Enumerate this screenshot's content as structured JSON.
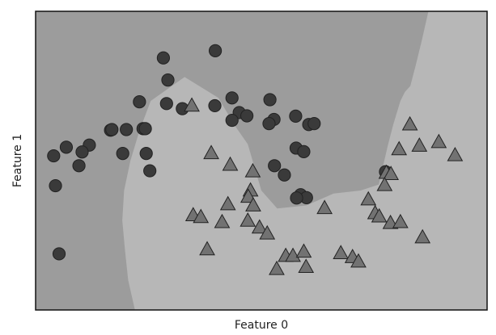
{
  "chart_data": {
    "type": "scatter",
    "title": "",
    "xlabel": "Feature 0",
    "ylabel": "Feature 1",
    "grid": false,
    "legend": "none",
    "xlim": [
      0,
      100
    ],
    "ylim": [
      0,
      100
    ],
    "colors": {
      "region_class0": "#9c9c9c",
      "region_class1": "#b7b7b7",
      "marker_class0": "#3a3a3a",
      "marker_class1": "#727272",
      "marker_edge": "#222222"
    },
    "decision_boundary": {
      "x": [
        22.0,
        20.5,
        19.8,
        19.2,
        19.6,
        21.0,
        23.0,
        25.5,
        33.0,
        40.5,
        44.0,
        47.0,
        50.0,
        53.5,
        60.0,
        66.0,
        72.0,
        76.0,
        78.0,
        79.2,
        80.0,
        80.8,
        81.8,
        83.0,
        84.2,
        85.5,
        87.0
      ],
      "y": [
        0.0,
        10.0,
        20.0,
        30.0,
        40.0,
        50.0,
        60.0,
        70.0,
        78.0,
        71.0,
        62.0,
        55.5,
        40.0,
        34.0,
        35.0,
        39.0,
        40.0,
        42.0,
        55.0,
        62.0,
        66.0,
        70.0,
        73.0,
        75.0,
        82.0,
        90.0,
        100.0
      ]
    },
    "series": [
      {
        "marker": "circle",
        "points": [
          {
            "x": 28.3,
            "y": 84.4
          },
          {
            "x": 29.3,
            "y": 77.0
          },
          {
            "x": 39.8,
            "y": 86.8
          },
          {
            "x": 23.0,
            "y": 69.7
          },
          {
            "x": 29.0,
            "y": 69.1
          },
          {
            "x": 43.5,
            "y": 71.0
          },
          {
            "x": 39.7,
            "y": 68.4
          },
          {
            "x": 45.1,
            "y": 66.1
          },
          {
            "x": 43.5,
            "y": 63.5
          },
          {
            "x": 46.8,
            "y": 65.0
          },
          {
            "x": 51.9,
            "y": 70.4
          },
          {
            "x": 52.8,
            "y": 63.8
          },
          {
            "x": 51.7,
            "y": 62.4
          },
          {
            "x": 57.6,
            "y": 64.9
          },
          {
            "x": 60.5,
            "y": 62.1
          },
          {
            "x": 61.7,
            "y": 62.4
          },
          {
            "x": 32.5,
            "y": 67.4
          },
          {
            "x": 16.6,
            "y": 60.2
          },
          {
            "x": 23.8,
            "y": 60.7
          },
          {
            "x": 24.3,
            "y": 60.7
          },
          {
            "x": 16.9,
            "y": 60.4
          },
          {
            "x": 20.1,
            "y": 60.4
          },
          {
            "x": 11.9,
            "y": 55.2
          },
          {
            "x": 6.8,
            "y": 54.5
          },
          {
            "x": 4.0,
            "y": 51.6
          },
          {
            "x": 10.3,
            "y": 52.9
          },
          {
            "x": 9.6,
            "y": 48.3
          },
          {
            "x": 19.3,
            "y": 52.4
          },
          {
            "x": 24.5,
            "y": 52.4
          },
          {
            "x": 25.3,
            "y": 46.6
          },
          {
            "x": 57.7,
            "y": 54.2
          },
          {
            "x": 59.4,
            "y": 53.0
          },
          {
            "x": 52.9,
            "y": 48.3
          },
          {
            "x": 55.1,
            "y": 45.2
          },
          {
            "x": 4.4,
            "y": 41.6
          },
          {
            "x": 58.7,
            "y": 38.6
          },
          {
            "x": 60.0,
            "y": 37.6
          },
          {
            "x": 57.8,
            "y": 37.5
          },
          {
            "x": 77.5,
            "y": 46.3
          },
          {
            "x": 5.2,
            "y": 18.8
          }
        ]
      },
      {
        "marker": "triangle",
        "points": [
          {
            "x": 34.6,
            "y": 68.5
          },
          {
            "x": 82.9,
            "y": 62.2
          },
          {
            "x": 80.5,
            "y": 53.9
          },
          {
            "x": 85.0,
            "y": 55.1
          },
          {
            "x": 89.3,
            "y": 56.3
          },
          {
            "x": 92.9,
            "y": 51.9
          },
          {
            "x": 38.9,
            "y": 52.6
          },
          {
            "x": 43.1,
            "y": 48.7
          },
          {
            "x": 48.1,
            "y": 46.5
          },
          {
            "x": 77.7,
            "y": 46.0
          },
          {
            "x": 78.7,
            "y": 45.6
          },
          {
            "x": 77.3,
            "y": 41.9
          },
          {
            "x": 47.6,
            "y": 40.1
          },
          {
            "x": 47.1,
            "y": 38.0
          },
          {
            "x": 42.6,
            "y": 35.5
          },
          {
            "x": 48.2,
            "y": 35.1
          },
          {
            "x": 73.7,
            "y": 37.1
          },
          {
            "x": 64.0,
            "y": 34.2
          },
          {
            "x": 75.2,
            "y": 32.5
          },
          {
            "x": 76.1,
            "y": 31.4
          },
          {
            "x": 34.9,
            "y": 31.8
          },
          {
            "x": 36.6,
            "y": 31.2
          },
          {
            "x": 47.0,
            "y": 30.0
          },
          {
            "x": 41.3,
            "y": 29.5
          },
          {
            "x": 49.6,
            "y": 27.7
          },
          {
            "x": 51.3,
            "y": 25.7
          },
          {
            "x": 78.6,
            "y": 29.2
          },
          {
            "x": 80.8,
            "y": 29.5
          },
          {
            "x": 85.7,
            "y": 24.4
          },
          {
            "x": 38.0,
            "y": 20.4
          },
          {
            "x": 55.4,
            "y": 18.2
          },
          {
            "x": 57.0,
            "y": 18.2
          },
          {
            "x": 59.4,
            "y": 19.6
          },
          {
            "x": 67.6,
            "y": 19.1
          },
          {
            "x": 70.2,
            "y": 17.8
          },
          {
            "x": 71.5,
            "y": 16.3
          },
          {
            "x": 53.4,
            "y": 13.8
          },
          {
            "x": 59.9,
            "y": 14.5
          }
        ]
      }
    ]
  }
}
